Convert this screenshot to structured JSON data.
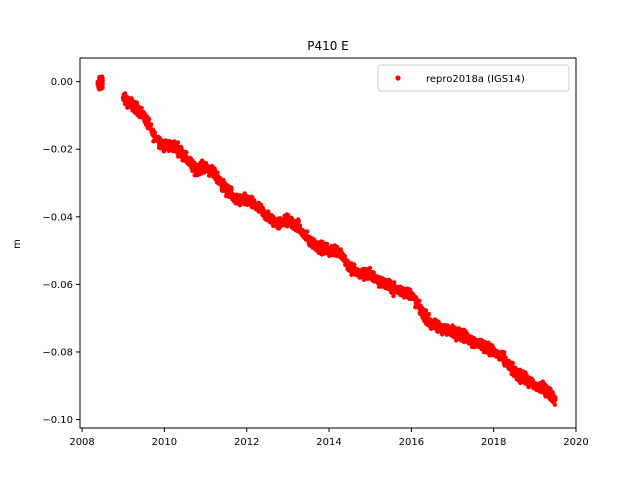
{
  "chart_data": {
    "type": "scatter",
    "title": "P410 E",
    "xlabel": "",
    "ylabel": "m",
    "xlim": [
      2007.95,
      2020.0
    ],
    "ylim": [
      -0.1025,
      0.007
    ],
    "xticks": [
      2008,
      2010,
      2012,
      2014,
      2016,
      2018,
      2020
    ],
    "xtick_labels": [
      "2008",
      "2010",
      "2012",
      "2014",
      "2016",
      "2018",
      "2020"
    ],
    "yticks": [
      0.0,
      -0.02,
      -0.04,
      -0.06,
      -0.08,
      -0.1
    ],
    "ytick_labels": [
      "0.00",
      "−0.02",
      "−0.04",
      "−0.06",
      "−0.08",
      "−0.10"
    ],
    "legend_position": "top-right",
    "grid": false,
    "series": [
      {
        "name": "repro2018a (IGS14)",
        "color": "#ff0000",
        "marker": "dot",
        "x": [
          2008.4,
          2008.45,
          2008.5,
          2009.0,
          2009.25,
          2009.5,
          2009.75,
          2010.0,
          2010.25,
          2010.5,
          2010.75,
          2011.0,
          2011.25,
          2011.5,
          2011.75,
          2012.0,
          2012.25,
          2012.5,
          2012.75,
          2013.0,
          2013.25,
          2013.5,
          2013.75,
          2014.0,
          2014.25,
          2014.5,
          2014.75,
          2015.0,
          2015.25,
          2015.5,
          2015.75,
          2016.0,
          2016.25,
          2016.5,
          2016.75,
          2017.0,
          2017.25,
          2017.5,
          2017.75,
          2018.0,
          2018.25,
          2018.5,
          2018.75,
          2019.0,
          2019.25,
          2019.5
        ],
        "y": [
          -0.001,
          0.0005,
          0.001,
          -0.005,
          -0.007,
          -0.01,
          -0.016,
          -0.019,
          -0.019,
          -0.022,
          -0.026,
          -0.025,
          -0.028,
          -0.032,
          -0.035,
          -0.035,
          -0.037,
          -0.04,
          -0.042,
          -0.041,
          -0.043,
          -0.047,
          -0.049,
          -0.05,
          -0.05,
          -0.055,
          -0.057,
          -0.057,
          -0.059,
          -0.061,
          -0.062,
          -0.063,
          -0.068,
          -0.072,
          -0.073,
          -0.074,
          -0.075,
          -0.077,
          -0.078,
          -0.08,
          -0.082,
          -0.086,
          -0.088,
          -0.09,
          -0.091,
          -0.094
        ]
      }
    ]
  }
}
